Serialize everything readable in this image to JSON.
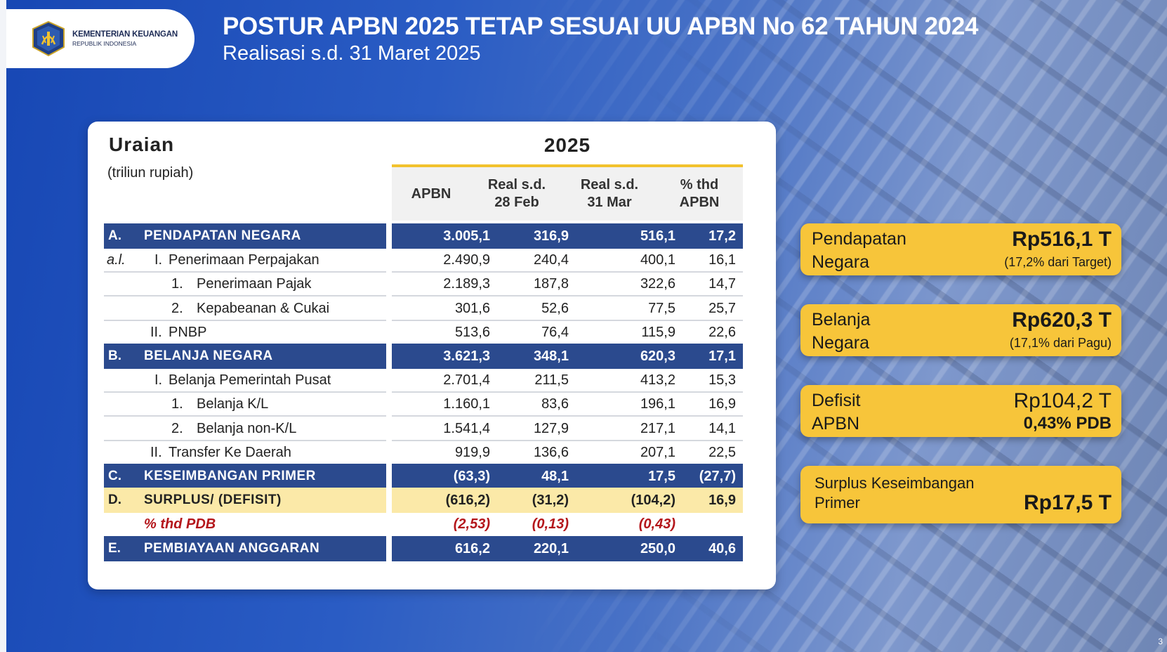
{
  "header": {
    "logo_line1": "KEMENTERIAN KEUANGAN",
    "logo_line2": "REPUBLIK INDONESIA",
    "title": "POSTUR APBN 2025 TETAP SESUAI UU APBN No 62 TAHUN 2024",
    "subtitle": "Realisasi s.d. 31 Maret 2025"
  },
  "table": {
    "uraian_label": "Uraian",
    "unit": "(triliun rupiah)",
    "year": "2025",
    "col_apbn": "APBN",
    "col_feb_1": "Real s.d.",
    "col_feb_2": "28 Feb",
    "col_mar_1": "Real s.d.",
    "col_mar_2": "31 Mar",
    "col_pct_1": "% thd",
    "col_pct_2": "APBN",
    "rows": [
      {
        "letter": "A.",
        "prefix": "",
        "num": "",
        "label": "PENDAPATAN NEGARA",
        "values": [
          "3.005,1",
          "316,9",
          "516,1",
          "17,2"
        ]
      },
      {
        "letter": "",
        "prefix": "a.l.",
        "num": "I.",
        "label": "Penerimaan Perpajakan",
        "values": [
          "2.490,9",
          "240,4",
          "400,1",
          "16,1"
        ]
      },
      {
        "letter": "",
        "prefix": "",
        "num": "1.",
        "label": "Penerimaan Pajak",
        "values": [
          "2.189,3",
          "187,8",
          "322,6",
          "14,7"
        ]
      },
      {
        "letter": "",
        "prefix": "",
        "num": "2.",
        "label": "Kepabeanan & Cukai",
        "values": [
          "301,6",
          "52,6",
          "77,5",
          "25,7"
        ]
      },
      {
        "letter": "",
        "prefix": "",
        "num": "II.",
        "label": "PNBP",
        "values": [
          "513,6",
          "76,4",
          "115,9",
          "22,6"
        ]
      },
      {
        "letter": "B.",
        "prefix": "",
        "num": "",
        "label": "BELANJA NEGARA",
        "values": [
          "3.621,3",
          "348,1",
          "620,3",
          "17,1"
        ]
      },
      {
        "letter": "",
        "prefix": "",
        "num": "I.",
        "label": "Belanja Pemerintah Pusat",
        "values": [
          "2.701,4",
          "211,5",
          "413,2",
          "15,3"
        ]
      },
      {
        "letter": "",
        "prefix": "",
        "num": "1.",
        "label": "Belanja K/L",
        "values": [
          "1.160,1",
          "83,6",
          "196,1",
          "16,9"
        ]
      },
      {
        "letter": "",
        "prefix": "",
        "num": "2.",
        "label": "Belanja non-K/L",
        "values": [
          "1.541,4",
          "127,9",
          "217,1",
          "14,1"
        ]
      },
      {
        "letter": "",
        "prefix": "",
        "num": "II.",
        "label": "Transfer Ke Daerah",
        "values": [
          "919,9",
          "136,6",
          "207,1",
          "22,5"
        ]
      },
      {
        "letter": "C.",
        "prefix": "",
        "num": "",
        "label": "KESEIMBANGAN PRIMER",
        "values": [
          "(63,3)",
          "48,1",
          "17,5",
          "(27,7)"
        ]
      },
      {
        "letter": "D.",
        "prefix": "",
        "num": "",
        "label": "SURPLUS/ (DEFISIT)",
        "values": [
          "(616,2)",
          "(31,2)",
          "(104,2)",
          "16,9"
        ]
      },
      {
        "letter": "",
        "prefix": "",
        "num": "",
        "label": "% thd PDB",
        "values": [
          "(2,53)",
          "(0,13)",
          "(0,43)",
          ""
        ]
      },
      {
        "letter": "E.",
        "prefix": "",
        "num": "",
        "label": "PEMBIAYAAN ANGGARAN",
        "values": [
          "616,2",
          "220,1",
          "250,0",
          "40,6"
        ]
      }
    ]
  },
  "kpis": {
    "pendapatan": {
      "line1": "Pendapatan",
      "line2": "Negara",
      "amount": "Rp516,1 T",
      "note": "(17,2% dari Target)"
    },
    "belanja": {
      "line1": "Belanja",
      "line2": "Negara",
      "amount": "Rp620,3 T",
      "note": "(17,1% dari Pagu)"
    },
    "defisit": {
      "line1": "Defisit",
      "line2": "APBN",
      "amount": "Rp104,2 T",
      "note": "0,43% PDB"
    },
    "surplus": {
      "line1": "Surplus Keseimbangan",
      "line2": "Primer",
      "amount": "Rp17,5 T"
    }
  },
  "colors": {
    "band": "#2b4a8e",
    "accent": "#f2c22e",
    "kpi": "#f7c53a",
    "deficit_row": "#fbe9a8",
    "pdb_text": "#b4161b"
  },
  "page_number": "3"
}
